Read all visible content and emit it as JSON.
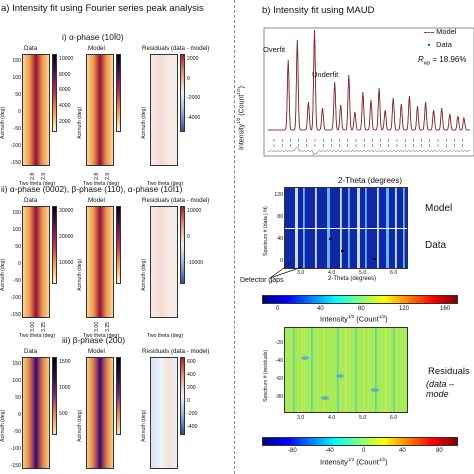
{
  "panel_a": {
    "title": "a) Intensity fit using Fourier series peak analysis",
    "rows": [
      {
        "title": "i) α-phase (10Ī0)",
        "headings": [
          "Data",
          "Model",
          "Residuals (data - model)"
        ],
        "yticks": [
          "150",
          "100",
          "50",
          "0",
          "-50",
          "-100",
          "-150"
        ],
        "xticks": [
          "2.8",
          "2.9"
        ],
        "cbar_ticks": [
          "10000",
          "8000",
          "6000",
          "4000",
          "2000"
        ],
        "res_ticks": [
          "2000",
          "0",
          "-2000",
          "-4000"
        ]
      },
      {
        "title": "ii) α-phase (0002), β-phase (110), α-phase (10Ī1)",
        "headings": [
          "Data",
          "Model",
          "Residuals (data - model)"
        ],
        "yticks": [
          "150",
          "100",
          "50",
          "0",
          "-50",
          "-100",
          "-150"
        ],
        "xticks": [
          "3.00",
          "3.25"
        ],
        "cbar_ticks": [
          "30000",
          "20000",
          "10000"
        ],
        "res_ticks": [
          "10000",
          "0",
          "-10000"
        ]
      },
      {
        "title": "iii) β-phase (200)",
        "headings": [
          "Data",
          "Model",
          "Residuals (data - model)"
        ],
        "yticks": [
          "150",
          "100",
          "50",
          "0",
          "-50",
          "-100",
          "-150"
        ],
        "xticks": [
          "4.4",
          "4.5"
        ],
        "cbar_ticks": [
          "1500",
          "1000",
          "500"
        ],
        "res_ticks": [
          "600",
          "400",
          "200",
          "0",
          "-200",
          "-400"
        ]
      }
    ],
    "ylabel": "Azimuth (deg)",
    "xlabel": "Two theta (deg)"
  },
  "panel_b": {
    "title": "b) Intensity fit using MAUD",
    "legend_model": "Model",
    "legend_data": "Data",
    "rwp_label": "R",
    "rwp_sub": "wp",
    "rwp_value": " = 18.96%",
    "overfit_label": "Overfit",
    "underfit_label": "Underfit",
    "ylabel": "Intensity",
    "ylabel_sup": "1/2",
    "ylabel_unit": " (Count",
    "ylabel_close": ")",
    "xlabel": "2-Theta (degrees)",
    "heatmap_ylabel": "Spectrum # (data | fit)",
    "heatmap_xlabel": "2-Theta (degrees)",
    "heatmap_xticks": [
      "3.0",
      "4.0",
      "5.0",
      "6.0"
    ],
    "heatmap_yticks": [
      "120",
      "80",
      "40",
      "0"
    ],
    "model_label": "Model",
    "data_label": "Data",
    "detector_gaps": "Detector gaps",
    "cbar1_ticks": [
      "0",
      "40",
      "80",
      "120",
      "160"
    ],
    "cbar1_label": "Intensity",
    "cbar1_label_sup": "1/2",
    "cbar1_label_unit": " (Count",
    "cbar1_label_sup2": "1/2",
    "cbar1_label_close": ")",
    "resid_ylabel": "Spectrum # (residuals)",
    "resid_yticks": [
      "-20",
      "-40",
      "-60",
      "-80"
    ],
    "resid_xticks": [
      "3.0",
      "4.0",
      "5.0",
      "6.0"
    ],
    "residuals_label": "Residuals",
    "residuals_sub": "(data – mode",
    "cbar2_ticks": [
      "-80",
      "-40",
      "0",
      "40",
      "80"
    ],
    "cbar2_label": "Intensity",
    "cbar2_label_sup": "1/2",
    "cbar2_label_unit": " (Count",
    "cbar2_label_sup2": "1/2",
    "cbar2_label_close": ")",
    "colors": {
      "model_line": "#cc1f1f",
      "data_marker": "#222222",
      "heat_bg": "#1028a8"
    }
  }
}
